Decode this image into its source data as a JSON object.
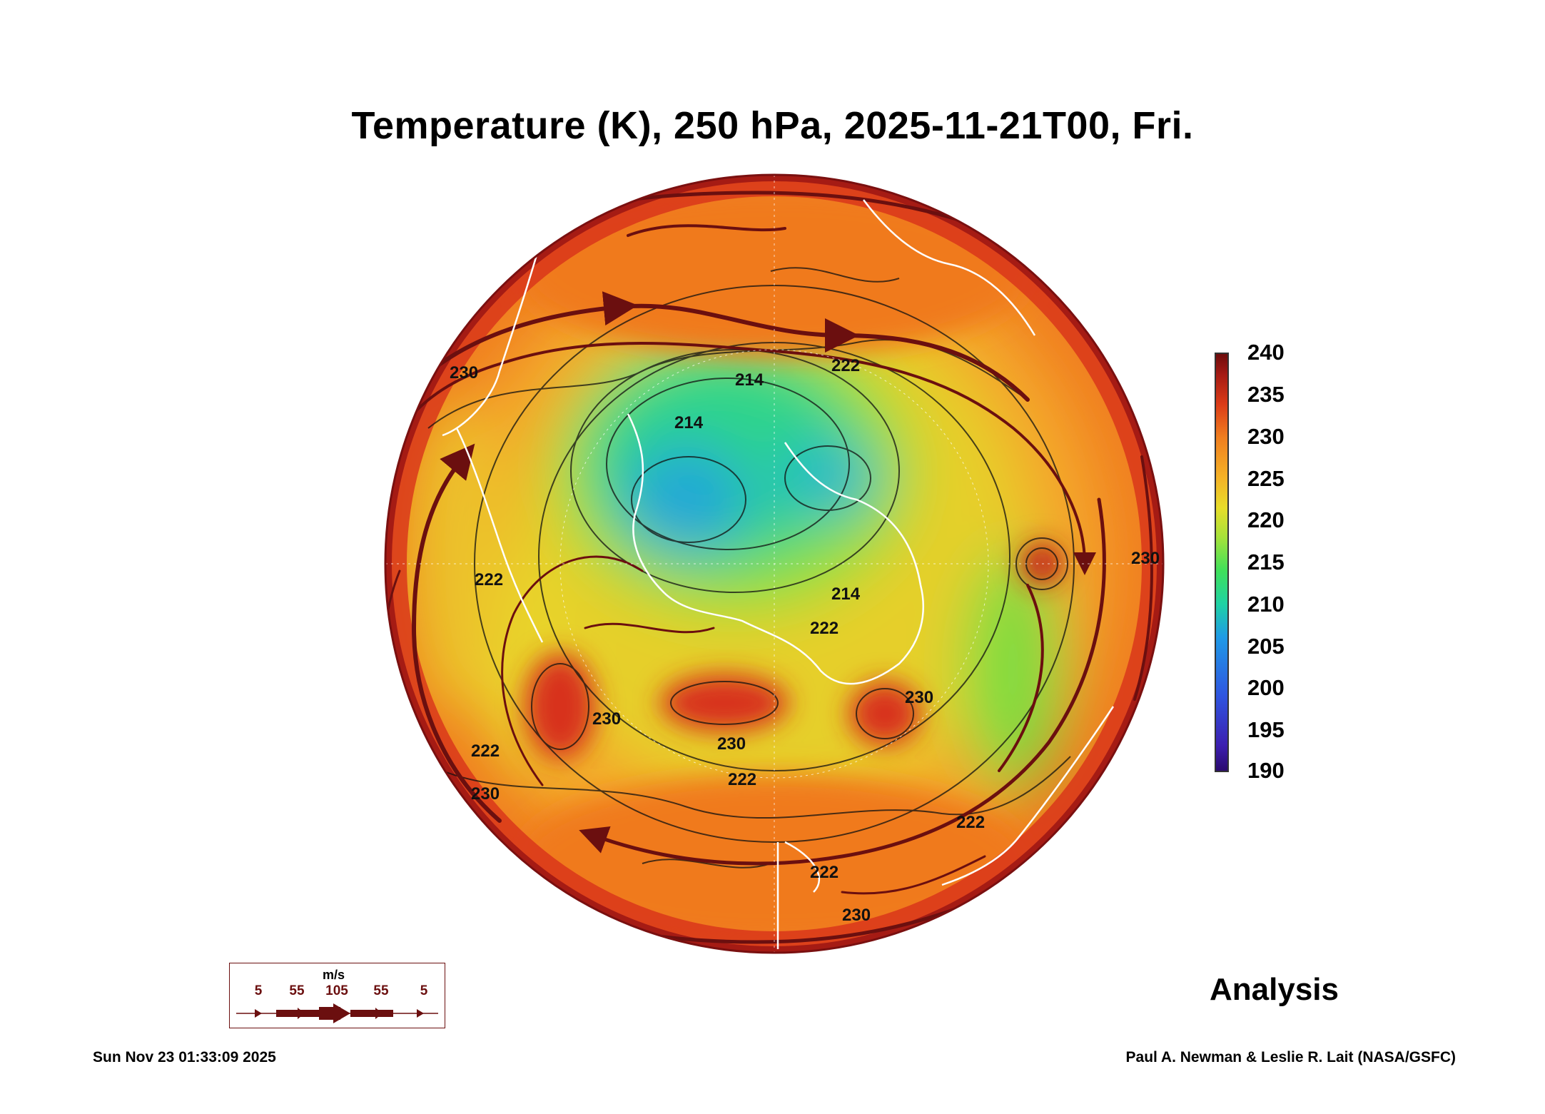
{
  "title": "Temperature (K), 250 hPa, 2025-11-21T00, Fri.",
  "colorbar": {
    "ticks": [
      "240",
      "235",
      "230",
      "225",
      "220",
      "215",
      "210",
      "205",
      "200",
      "195",
      "190"
    ],
    "colors": [
      "#2b0a6e",
      "#3c1fb0",
      "#2f55e0",
      "#1f9ae6",
      "#1fd2a4",
      "#3fe05a",
      "#a6e23a",
      "#e7dd2a",
      "#f4b427",
      "#f07e1f",
      "#db3b17",
      "#a51b14",
      "#6e0c0c"
    ]
  },
  "contour_labels": [
    "230",
    "230",
    "230",
    "230",
    "230",
    "230",
    "230",
    "222",
    "222",
    "222",
    "222",
    "222",
    "222",
    "222",
    "214",
    "214",
    "214"
  ],
  "wind_legend": {
    "unit": "m/s",
    "labels": [
      "5",
      "55",
      "105",
      "55",
      "5"
    ]
  },
  "analysis_label": "Analysis",
  "timestamp": "Sun Nov 23 01:33:09 2025",
  "credit": "Paul A. Newman & Leslie R. Lait (NASA/GSFC)"
}
